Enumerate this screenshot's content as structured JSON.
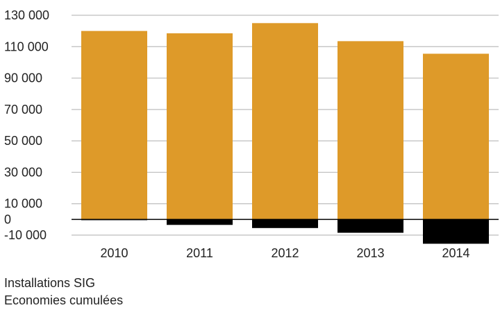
{
  "chart_data": {
    "type": "bar",
    "categories": [
      "2010",
      "2011",
      "2012",
      "2013",
      "2014"
    ],
    "series": [
      {
        "name": "Installations SIG",
        "values": [
          120000,
          118500,
          125000,
          113500,
          105500
        ],
        "color": "#de9a29"
      },
      {
        "name": "Economies cumulées",
        "values": [
          -500,
          -3500,
          -5500,
          -8500,
          -15500
        ],
        "color": "#000000"
      }
    ],
    "ylim": [
      -10000,
      130000
    ],
    "yticks": [
      -10000,
      0,
      10000,
      30000,
      50000,
      70000,
      90000,
      110000,
      130000
    ],
    "ytick_labels": [
      "-10 000",
      "0",
      "10 000",
      "30 000",
      "50 000",
      "70 000",
      "90 000",
      "110 000",
      "130 000"
    ],
    "grid": true,
    "legend": "bottom-left",
    "title": "",
    "xlabel": "",
    "ylabel": ""
  }
}
